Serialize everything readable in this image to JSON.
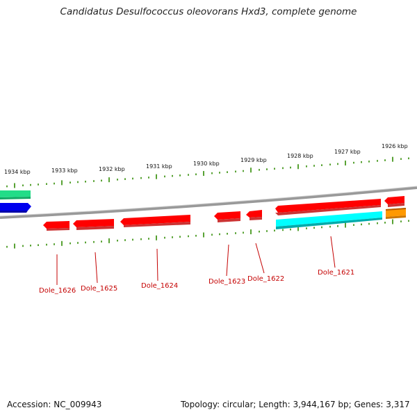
{
  "title": "Candidatus Desulfococcus oleovorans Hxd3, complete genome",
  "footer": {
    "accession": "Accession: NC_009943",
    "summary": "Topology: circular; Length: 3,944,167 bp; Genes: 3,317"
  },
  "scale_labels": [
    "1934 kbp",
    "1933 kbp",
    "1932 kbp",
    "1931 kbp",
    "1930 kbp",
    "1929 kbp",
    "1928 kbp",
    "1927 kbp",
    "1926 kbp"
  ],
  "genes": [
    {
      "name": "Dole_1626",
      "strand": "reverse",
      "color": "#ff0000"
    },
    {
      "name": "Dole_1625",
      "strand": "reverse",
      "color": "#ff0000"
    },
    {
      "name": "Dole_1624",
      "strand": "reverse",
      "color": "#ff0000"
    },
    {
      "name": "Dole_1623",
      "strand": "reverse",
      "color": "#ff0000"
    },
    {
      "name": "Dole_1622",
      "strand": "reverse",
      "color": "#ff0000"
    },
    {
      "name": "Dole_1621",
      "strand": "reverse",
      "color": "#ff0000"
    }
  ],
  "colors": {
    "gene_red": "#ff0000",
    "gene_green": "#22dd88",
    "gene_blue": "#0000ee",
    "gene_cyan": "#00ffff",
    "gene_orange": "#ff9900",
    "tick_green": "#2e8b00",
    "backbone": "#888888",
    "label_red": "#c40000"
  }
}
